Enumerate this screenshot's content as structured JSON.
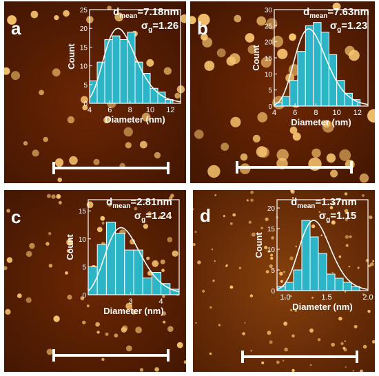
{
  "panels": [
    {
      "letter": "a",
      "d_label": "d",
      "d_sub": "mean",
      "d_value": "=7.18nm",
      "s_label": "σ",
      "s_sub": "g",
      "s_value": "=1.26"
    },
    {
      "letter": "b",
      "d_label": "d",
      "d_sub": "mean",
      "d_value": "=7.63nm",
      "s_label": "σ",
      "s_sub": "g",
      "s_value": "=1.23"
    },
    {
      "letter": "c",
      "d_label": "d",
      "d_sub": "mean",
      "d_value": "=2.81nm",
      "s_label": "σ",
      "s_sub": "g",
      "s_value": "=1.24"
    },
    {
      "letter": "d",
      "d_label": "d",
      "d_sub": "mean",
      "d_value": "=1.37nm",
      "s_label": "σ",
      "s_sub": "g",
      "s_value": "=1.15"
    }
  ],
  "colors": {
    "bar_fill": "#2bb5c6",
    "bar_stroke": "#ffffff",
    "axis": "#ffffff",
    "fit_curve": "#ffffff",
    "scale_bar": "#ffffff",
    "afm_dark": "#3a1200",
    "afm_mid": "#7a3005",
    "afm_particle": "#f6c36e"
  },
  "chart_data": [
    {
      "type": "bar",
      "panel": "a",
      "xlabel": "Diameter (nm)",
      "ylabel": "Count",
      "xlim": [
        4,
        13
      ],
      "ylim": [
        0,
        25
      ],
      "xticks": [
        4,
        6,
        8,
        10,
        12
      ],
      "yticks": [
        0,
        5,
        10,
        15,
        20,
        25
      ],
      "bin_edges": [
        4.0,
        4.75,
        5.5,
        6.25,
        7.0,
        7.75,
        8.5,
        9.25,
        10.0,
        10.75,
        11.5,
        12.25
      ],
      "values": [
        6,
        11,
        17,
        18,
        17,
        19,
        11,
        8,
        4,
        3,
        1
      ],
      "fit": {
        "kind": "lognormal",
        "d_mean": 7.18,
        "sigma_g": 1.26,
        "peak": 20
      }
    },
    {
      "type": "bar",
      "panel": "b",
      "xlabel": "Diameter (nm)",
      "ylabel": "Count",
      "xlim": [
        4,
        13
      ],
      "ylim": [
        0,
        30
      ],
      "xticks": [
        4,
        6,
        8,
        10,
        12
      ],
      "yticks": [
        0,
        5,
        10,
        15,
        20,
        25,
        30
      ],
      "bin_edges": [
        4.0,
        4.75,
        5.5,
        6.25,
        7.0,
        7.75,
        8.5,
        9.25,
        10.0,
        10.75,
        11.5,
        12.25
      ],
      "values": [
        1,
        3,
        8,
        17,
        25,
        26,
        23,
        16,
        8,
        4,
        2
      ],
      "fit": {
        "kind": "lognormal",
        "d_mean": 7.63,
        "sigma_g": 1.23,
        "peak": 24
      }
    },
    {
      "type": "bar",
      "panel": "c",
      "xlabel": "Diameter (nm)",
      "ylabel": "Count",
      "xlim": [
        1.6,
        4.6
      ],
      "ylim": [
        0,
        17
      ],
      "xticks": [
        3,
        4
      ],
      "yticks": [
        0,
        5,
        10,
        15
      ],
      "bin_edges": [
        1.6,
        1.9,
        2.2,
        2.5,
        2.8,
        3.1,
        3.4,
        3.7,
        4.0,
        4.3,
        4.6
      ],
      "values": [
        5,
        9,
        13,
        11,
        8,
        8,
        3,
        4,
        2,
        1
      ],
      "fit": {
        "kind": "lognormal",
        "d_mean": 2.81,
        "sigma_g": 1.24,
        "peak": 12
      }
    },
    {
      "type": "bar",
      "panel": "d",
      "xlabel": "Diameter (nm)",
      "ylabel": "Count",
      "xlim": [
        0.9,
        2.0
      ],
      "ylim": [
        0,
        22
      ],
      "xticks": [
        1.0,
        1.5,
        2.0
      ],
      "xtick_labels": [
        "1.0",
        "1.5",
        "2.0"
      ],
      "yticks": [
        0,
        5,
        10,
        15,
        20
      ],
      "bin_edges": [
        0.9,
        1.0,
        1.1,
        1.2,
        1.3,
        1.4,
        1.5,
        1.6,
        1.7,
        1.8,
        1.9
      ],
      "values": [
        1,
        2,
        5,
        17,
        13,
        9,
        4,
        3,
        2,
        1
      ],
      "fit": {
        "kind": "lognormal",
        "d_mean": 1.37,
        "sigma_g": 1.15,
        "peak": 17
      }
    }
  ]
}
